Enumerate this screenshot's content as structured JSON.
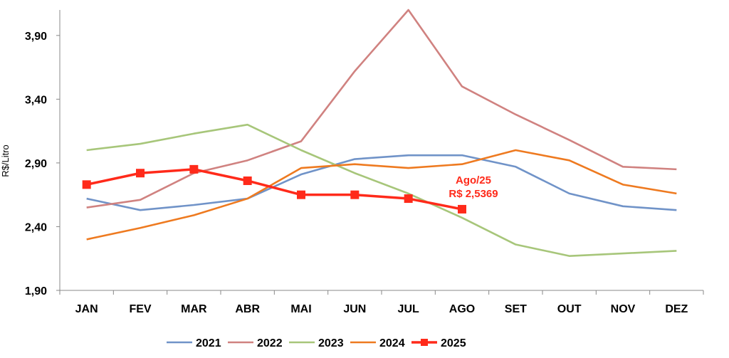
{
  "chart_data": {
    "type": "line",
    "title": "",
    "xlabel": "",
    "ylabel": "R$/Litro",
    "ylim": [
      1.9,
      4.1
    ],
    "yticks": [
      "1,90",
      "2,40",
      "2,90",
      "3,40",
      "3,90"
    ],
    "ytick_values": [
      1.9,
      2.4,
      2.9,
      3.4,
      3.9
    ],
    "categories": [
      "JAN",
      "FEV",
      "MAR",
      "ABR",
      "MAI",
      "JUN",
      "JUL",
      "AGO",
      "SET",
      "OUT",
      "NOV",
      "DEZ"
    ],
    "grid": false,
    "legend_position": "bottom",
    "series": [
      {
        "name": "2021",
        "color": "#7093c8",
        "marker": "none",
        "values": [
          2.62,
          2.53,
          2.57,
          2.62,
          2.81,
          2.93,
          2.96,
          2.96,
          2.87,
          2.66,
          2.56,
          2.53
        ]
      },
      {
        "name": "2022",
        "color": "#d08280",
        "marker": "none",
        "values": [
          2.55,
          2.61,
          2.82,
          2.92,
          3.07,
          3.62,
          4.1,
          3.5,
          3.28,
          3.08,
          2.87,
          2.85
        ]
      },
      {
        "name": "2023",
        "color": "#a7c67a",
        "marker": "none",
        "values": [
          3.0,
          3.05,
          3.13,
          3.2,
          3.0,
          2.82,
          2.66,
          2.47,
          2.26,
          2.17,
          2.19,
          2.21
        ]
      },
      {
        "name": "2024",
        "color": "#ee7a20",
        "marker": "none",
        "values": [
          2.3,
          2.39,
          2.49,
          2.62,
          2.86,
          2.89,
          2.86,
          2.89,
          3.0,
          2.92,
          2.73,
          2.66
        ]
      },
      {
        "name": "2025",
        "color": "#ff2a1a",
        "marker": "square",
        "values": [
          2.73,
          2.82,
          2.85,
          2.76,
          2.65,
          2.65,
          2.62,
          2.5369,
          null,
          null,
          null,
          null
        ]
      }
    ],
    "annotation": {
      "lines": [
        "Ago/25",
        "R$ 2,5369"
      ],
      "series": "2025",
      "category": "AGO"
    }
  }
}
